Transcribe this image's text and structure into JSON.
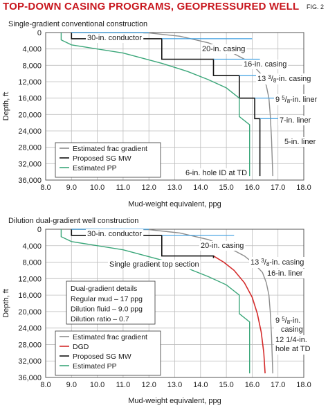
{
  "figure": {
    "title": "TOP-DOWN CASING PROGRAMS, GEOPRESSURED WELL",
    "fig_label": "FIG. 2"
  },
  "colors": {
    "frac": "#8c8c8c",
    "pp": "#3aa679",
    "sg": "#111111",
    "dgd": "#d42a2a",
    "marker": "#3b9ee0",
    "grid": "#bdbdbd",
    "title": "#c8171e"
  },
  "chart_data": [
    {
      "type": "line",
      "title": "Single-gradient conventional construction",
      "xlabel": "Mud-weight equivalent, ppg",
      "ylabel": "Depth, ft",
      "xlim": [
        8.0,
        18.0
      ],
      "ylim": [
        0,
        36000
      ],
      "y_inverted": true,
      "xticks": [
        "8.0",
        "9.0",
        "10.0",
        "11.0",
        "12.0",
        "13.0",
        "14.0",
        "15.0",
        "16.0",
        "17.0",
        "18.0"
      ],
      "yticks": [
        "0",
        "4,000",
        "8,000",
        "12,000",
        "16,000",
        "20,000",
        "24,000",
        "28,000",
        "32,000",
        "36,000"
      ],
      "grid": true,
      "legend": {
        "position": "bottom-left",
        "entries": [
          "Estimated frac gradient",
          "Proposed SG MW",
          "Estimated PP"
        ]
      },
      "series": [
        {
          "name": "Estimated frac gradient",
          "color_key": "frac",
          "x": [
            9.0,
            12.0,
            13.2,
            14.3,
            15.1,
            15.7,
            16.1,
            16.4,
            16.55,
            16.65,
            16.7,
            16.75,
            16.8
          ],
          "y": [
            0,
            100,
            900,
            2500,
            4500,
            6500,
            8500,
            10500,
            13000,
            16000,
            20000,
            26000,
            35000
          ]
        },
        {
          "name": "Proposed SG MW",
          "color_key": "sg",
          "x": [
            9.0,
            9.0,
            12.5,
            12.5,
            14.5,
            14.5,
            15.5,
            15.5,
            16.1,
            16.1,
            16.3,
            16.3
          ],
          "y": [
            0,
            1500,
            1500,
            6500,
            6500,
            10500,
            10500,
            16000,
            16000,
            21000,
            21000,
            35000
          ]
        },
        {
          "name": "Estimated PP",
          "color_key": "pp",
          "x": [
            8.6,
            8.6,
            9.0,
            11.0,
            12.5,
            13.5,
            14.3,
            15.0,
            15.5,
            15.5,
            15.9,
            15.9,
            15.9
          ],
          "y": [
            0,
            1800,
            3000,
            5000,
            7500,
            9500,
            11500,
            13500,
            16000,
            20500,
            22500,
            27000,
            35000
          ]
        }
      ],
      "casing_markers": [
        {
          "label": "30-in. conductor",
          "depth": 0
        },
        {
          "label": "20-in. casing",
          "depth": 1500
        },
        {
          "label": "16-in. casing",
          "depth": 6500
        },
        {
          "label": "13 3/8-in. casing",
          "depth": 10500
        },
        {
          "label": "9 5/8-in. liner",
          "depth": 16000
        },
        {
          "label": "7-in. liner",
          "depth": 21000
        },
        {
          "label": "5-in. liner",
          "depth": 27000
        },
        {
          "label": "6-in. hole ID at TD",
          "depth": 35000
        }
      ]
    },
    {
      "type": "line",
      "title": "Dilution dual-gradient well construction",
      "xlabel": "Mud-weight equivalent, ppg",
      "ylabel": "Depth, ft",
      "xlim": [
        8.0,
        18.0
      ],
      "ylim": [
        0,
        36000
      ],
      "y_inverted": true,
      "xticks": [
        "8.0",
        "9.0",
        "10.0",
        "11.0",
        "12.0",
        "13.0",
        "14.0",
        "15.0",
        "16.0",
        "17.0",
        "18.0"
      ],
      "yticks": [
        "0",
        "4,000",
        "8,000",
        "12,000",
        "16,000",
        "20,000",
        "24,000",
        "28,000",
        "32,000",
        "36,000"
      ],
      "grid": true,
      "legend": {
        "position": "bottom-left",
        "entries": [
          "Estimated frac gradient",
          "DGD",
          "Proposed SG MW",
          "Estimated PP"
        ]
      },
      "series": [
        {
          "name": "Estimated frac gradient",
          "color_key": "frac",
          "x": [
            9.0,
            12.0,
            13.2,
            14.3,
            15.1,
            15.7,
            16.1,
            16.4,
            16.55,
            16.65,
            16.7,
            16.75,
            16.8
          ],
          "y": [
            0,
            100,
            900,
            2500,
            4500,
            6500,
            8500,
            10500,
            13000,
            16000,
            20000,
            26000,
            35000
          ]
        },
        {
          "name": "DGD",
          "color_key": "dgd",
          "x": [
            14.5,
            14.9,
            15.3,
            15.7,
            16.0,
            16.2,
            16.35,
            16.45,
            16.5
          ],
          "y": [
            6500,
            8000,
            10000,
            13000,
            16500,
            20500,
            25000,
            30000,
            35000
          ]
        },
        {
          "name": "Proposed SG MW",
          "color_key": "sg",
          "x": [
            9.0,
            9.0,
            12.5,
            12.5,
            14.5,
            14.5
          ],
          "y": [
            0,
            1500,
            1500,
            6500,
            6500,
            7000
          ]
        },
        {
          "name": "Estimated PP",
          "color_key": "pp",
          "x": [
            8.6,
            8.6,
            9.0,
            11.0,
            12.5,
            13.5,
            14.3,
            15.0,
            15.5,
            15.5,
            15.9,
            15.9,
            15.9
          ],
          "y": [
            0,
            1800,
            3000,
            5000,
            7500,
            9500,
            11500,
            13500,
            16000,
            20500,
            22500,
            27000,
            35000
          ]
        }
      ],
      "casing_markers": [
        {
          "label": "30-in. conductor",
          "depth": 0
        },
        {
          "label": "20-in. casing",
          "depth": 1500
        },
        {
          "label": "Single gradient top section",
          "depth": 6500
        },
        {
          "label": "13 3/8-in. casing",
          "depth": 6000
        },
        {
          "label": "16-in. liner",
          "depth": 7000
        },
        {
          "label": "9 5/8-in. casing",
          "depth": 21000
        },
        {
          "label": "12 1/4-in. hole at TD",
          "depth": 27000
        }
      ],
      "details_box": {
        "title": "Dual-gradient details",
        "lines": [
          "Regular mud – 17 ppg",
          "Dilution fluid – 9.0 ppg",
          "Dilution ratio – 0.7"
        ]
      }
    }
  ]
}
